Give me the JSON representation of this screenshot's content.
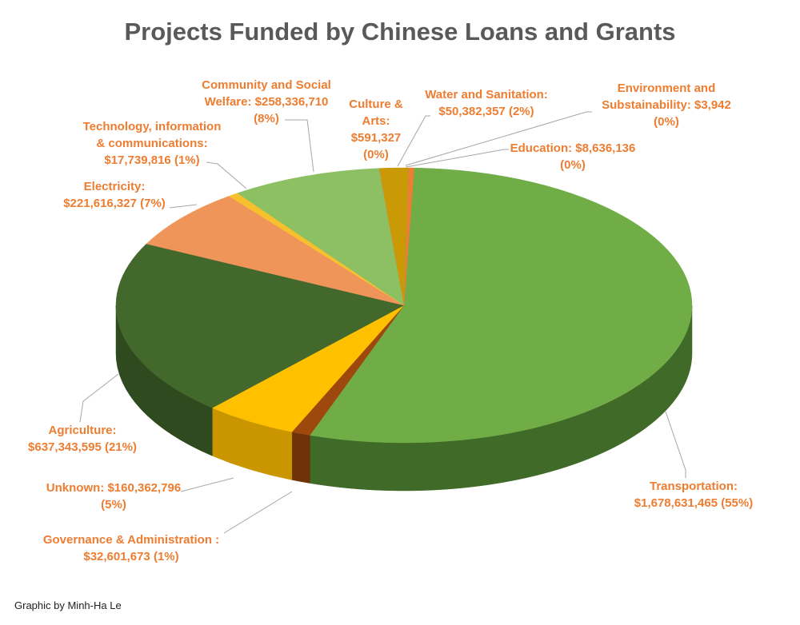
{
  "chart_data": {
    "type": "pie",
    "style": "3d",
    "title": "Projects Funded by Chinese Loans and Grants",
    "start": "top",
    "direction": "clockwise",
    "slices": [
      {
        "name": "Transportation",
        "value": 1678631465,
        "percent": "55%",
        "label": "Transportation:\n$1,678,631,465 (55%)",
        "color": "#70ad47",
        "side": "#3f6a27"
      },
      {
        "name": "Governance & Administration",
        "value": 32601673,
        "percent": "1%",
        "label": "Governance & Administration :\n$32,601,673 (1%)",
        "color": "#9e480e",
        "side": "#6f3209"
      },
      {
        "name": "Unknown",
        "value": 160362796,
        "percent": "5%",
        "label": "Unknown: $160,362,796\n(5%)",
        "color": "#ffc000",
        "side": "#c99600"
      },
      {
        "name": "Agriculture",
        "value": 637343595,
        "percent": "21%",
        "label": "Agriculture:\n$637,343,595 (21%)",
        "color": "#43682b",
        "side": "#2f4a1e"
      },
      {
        "name": "Electricity",
        "value": 221616327,
        "percent": "7%",
        "label": "Electricity:\n$221,616,327 (7%)",
        "color": "#f0955a",
        "side": "#b86d3d"
      },
      {
        "name": "Technology, information & communications",
        "value": 17739816,
        "percent": "1%",
        "label": "Technology, information\n& communications:\n$17,739,816 (1%)",
        "color": "#f7c12e",
        "side": "#c19420"
      },
      {
        "name": "Community and Social Welfare",
        "value": 258336710,
        "percent": "8%",
        "label": "Community and Social\nWelfare: $258,336,710\n(8%)",
        "color": "#8cc063",
        "side": "#5f8a42"
      },
      {
        "name": "Culture & Arts",
        "value": 591327,
        "percent": "0%",
        "label": "Culture &\nArts:\n$591,327\n(0%)",
        "color": "#a5a5a5",
        "side": "#777777"
      },
      {
        "name": "Water and Sanitation",
        "value": 50382357,
        "percent": "2%",
        "label": "Water and Sanitation:\n$50,382,357 (2%)",
        "color": "#c99a06",
        "side": "#8f6d04"
      },
      {
        "name": "Environment and Substainability",
        "value": 3942,
        "percent": "0%",
        "label": "Environment and\nSubstainability: $3,942\n(0%)",
        "color": "#5b9bd5",
        "side": "#41709a"
      },
      {
        "name": "Education",
        "value": 8636136,
        "percent": "0%",
        "label": "Education: $8,636,136\n(0%)",
        "color": "#ed7d31",
        "side": "#b35c22"
      }
    ]
  },
  "credit": "Graphic by Minh-Ha Le"
}
